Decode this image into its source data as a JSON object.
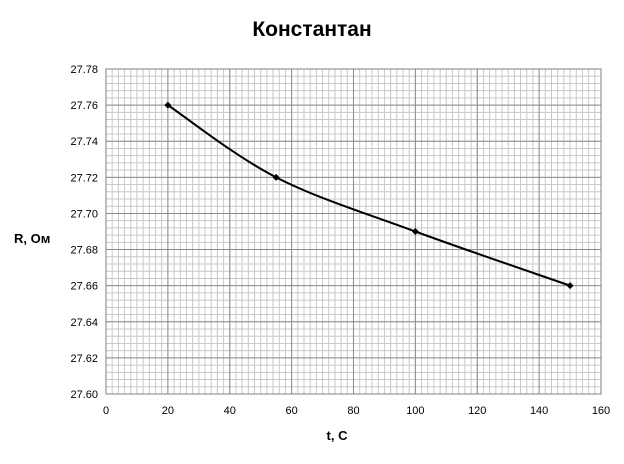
{
  "chart_data": {
    "type": "line",
    "title": "Константан",
    "xlabel": "t, С",
    "ylabel": "R, Ом",
    "x": [
      20,
      55,
      100,
      150
    ],
    "series": [
      {
        "values": [
          27.76,
          27.72,
          27.69,
          27.66
        ]
      }
    ],
    "xlim": [
      0,
      160
    ],
    "ylim": [
      27.6,
      27.78
    ],
    "xticks": [
      "0",
      "20",
      "40",
      "60",
      "80",
      "100",
      "120",
      "140",
      "160"
    ],
    "yticks": [
      "27.60",
      "27.62",
      "27.64",
      "27.66",
      "27.68",
      "27.70",
      "27.72",
      "27.74",
      "27.76",
      "27.78"
    ],
    "grid": true,
    "legend": "none",
    "line_color": "#000000"
  }
}
